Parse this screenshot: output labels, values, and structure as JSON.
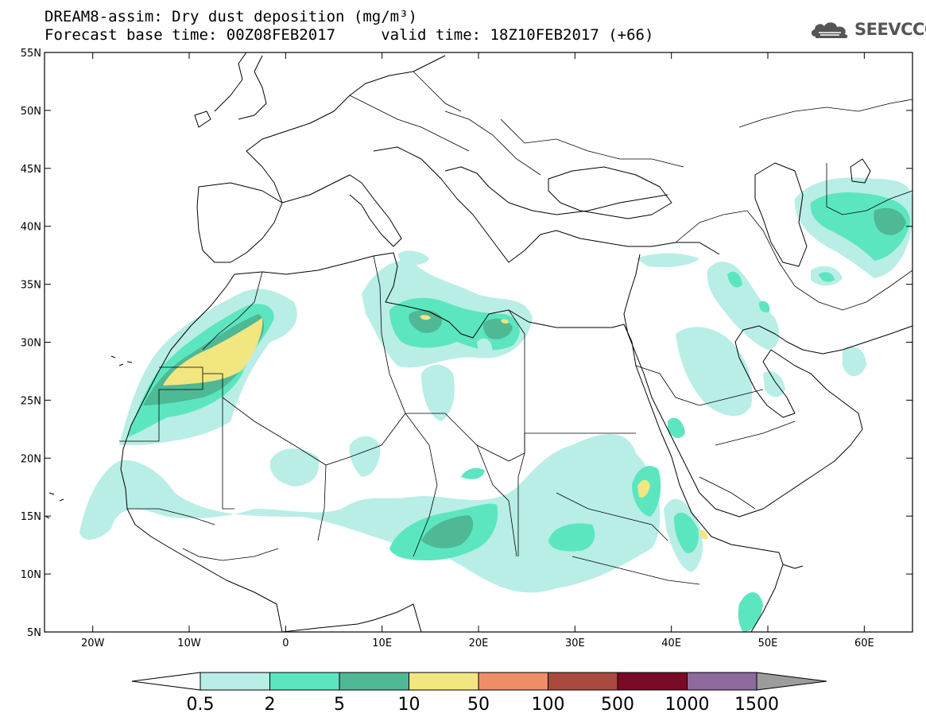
{
  "title": {
    "line1": "DREAM8-assim: Dry dust deposition (mg/m³)",
    "line2": "Forecast base time: 00Z08FEB2017     valid time: 18Z10FEB2017 (+66)"
  },
  "logo": {
    "text": "SEEVCCC",
    "color": "#555555"
  },
  "map": {
    "lon_range": [
      -25,
      65
    ],
    "lat_range": [
      5,
      55
    ],
    "lon_ticks": [
      {
        "value": -20,
        "label": "20W"
      },
      {
        "value": -10,
        "label": "10W"
      },
      {
        "value": 0,
        "label": "0"
      },
      {
        "value": 10,
        "label": "10E"
      },
      {
        "value": 20,
        "label": "20E"
      },
      {
        "value": 30,
        "label": "30E"
      },
      {
        "value": 40,
        "label": "40E"
      },
      {
        "value": 50,
        "label": "50E"
      },
      {
        "value": 60,
        "label": "60E"
      }
    ],
    "lat_ticks": [
      {
        "value": 55,
        "label": "55N"
      },
      {
        "value": 50,
        "label": "50N"
      },
      {
        "value": 45,
        "label": "45N"
      },
      {
        "value": 40,
        "label": "40N"
      },
      {
        "value": 35,
        "label": "35N"
      },
      {
        "value": 30,
        "label": "30N"
      },
      {
        "value": 25,
        "label": "25N"
      },
      {
        "value": 20,
        "label": "20N"
      },
      {
        "value": 15,
        "label": "15N"
      },
      {
        "value": 10,
        "label": "10N"
      },
      {
        "value": 5,
        "label": "5N"
      }
    ]
  },
  "colorbar": {
    "colors": [
      "#ffffff",
      "#b8eee6",
      "#5ce6c0",
      "#4fb894",
      "#f2e680",
      "#ec8f68",
      "#a84a3e",
      "#7a0a26",
      "#8e6a9e",
      "#9c9c9c"
    ],
    "labels": [
      "0.5",
      "2",
      "5",
      "10",
      "50",
      "100",
      "500",
      "1000",
      "1500"
    ]
  }
}
